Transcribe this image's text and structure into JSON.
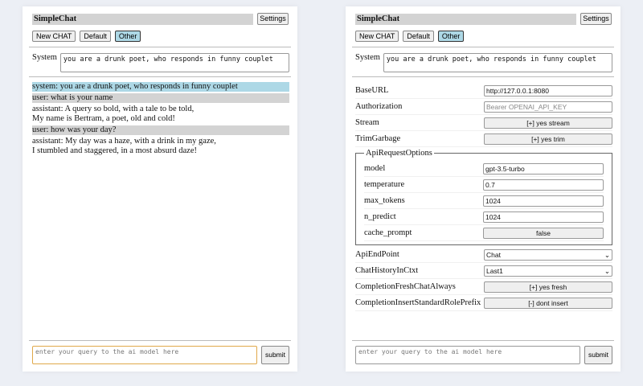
{
  "app": {
    "title": "SimpleChat",
    "settings_label": "Settings",
    "new_chat_label": "New CHAT",
    "default_label": "Default",
    "other_label": "Other",
    "system_label": "System",
    "system_prompt": "you are a drunk poet, who responds in funny couplet",
    "query_placeholder": "enter your query to the ai model here",
    "submit_label": "submit"
  },
  "chat": [
    {
      "role": "system",
      "lines": [
        "system: you are a drunk poet, who responds in funny couplet"
      ]
    },
    {
      "role": "user",
      "lines": [
        "user: what is your name"
      ]
    },
    {
      "role": "assistant",
      "lines": [
        "assistant: A query so bold, with a tale to be told,",
        "My name is Bertram, a poet, old and cold!"
      ]
    },
    {
      "role": "user",
      "lines": [
        "user: how was your day?"
      ]
    },
    {
      "role": "assistant",
      "lines": [
        "assistant: My day was a haze, with a drink in my gaze,",
        "I stumbled and staggered, in a most absurd daze!"
      ]
    }
  ],
  "settings": {
    "base_url": {
      "label": "BaseURL",
      "value": "http://127.0.0.1:8080"
    },
    "authorization": {
      "label": "Authorization",
      "placeholder": "Bearer OPENAI_API_KEY"
    },
    "stream": {
      "label": "Stream",
      "value": "[+] yes stream"
    },
    "trim": {
      "label": "TrimGarbage",
      "value": "[+] yes trim"
    },
    "api_options": {
      "legend": "ApiRequestOptions",
      "model": {
        "label": "model",
        "value": "gpt-3.5-turbo"
      },
      "temperature": {
        "label": "temperature",
        "value": "0.7"
      },
      "max_tokens": {
        "label": "max_tokens",
        "value": "1024"
      },
      "n_predict": {
        "label": "n_predict",
        "value": "1024"
      },
      "cache_prompt": {
        "label": "cache_prompt",
        "value": "false"
      }
    },
    "endpoint": {
      "label": "ApiEndPoint",
      "value": "Chat"
    },
    "history": {
      "label": "ChatHistoryInCtxt",
      "value": "Last1"
    },
    "fresh": {
      "label": "CompletionFreshChatAlways",
      "value": "[+] yes fresh"
    },
    "prefix": {
      "label": "CompletionInsertStandardRolePrefix",
      "value": "[-] dont insert"
    }
  }
}
